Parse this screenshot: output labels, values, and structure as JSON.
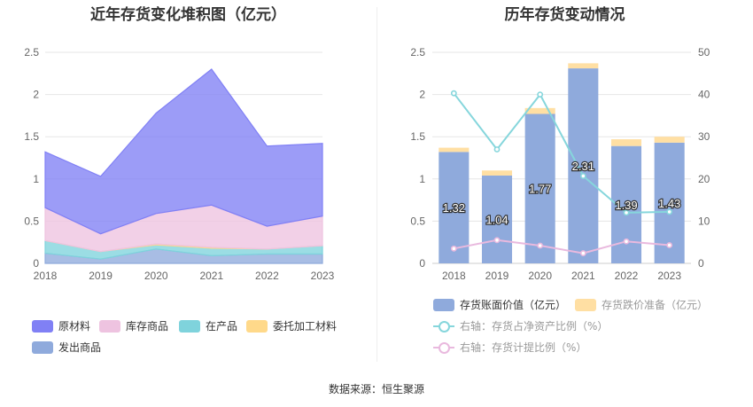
{
  "left_chart": {
    "title": "近年存货变化堆积图（亿元）"
  },
  "right_chart": {
    "title": "历年存货变动情况"
  },
  "source": "数据来源：恒生聚源",
  "chart_data": [
    {
      "type": "area",
      "stacked": true,
      "title": "近年存货变化堆积图（亿元）",
      "x": [
        "2018",
        "2019",
        "2020",
        "2021",
        "2022",
        "2023"
      ],
      "ylim": [
        0,
        2.5
      ],
      "yticks": [
        "0",
        "0.5",
        "1",
        "1.5",
        "2",
        "2.5"
      ],
      "grid": true,
      "legend_position": "bottom",
      "series": [
        {
          "name": "发出商品",
          "color": "#8faadc",
          "values": [
            0.12,
            0.05,
            0.17,
            0.09,
            0.11,
            0.11
          ]
        },
        {
          "name": "在产品",
          "color": "#7fd3dc",
          "values": [
            0.15,
            0.09,
            0.05,
            0.09,
            0.06,
            0.1
          ]
        },
        {
          "name": "委托加工材料",
          "color": "#ffd98a",
          "values": [
            0.0,
            0.0,
            0.01,
            0.01,
            0.0,
            0.0
          ]
        },
        {
          "name": "库存商品",
          "color": "#eec3e0",
          "values": [
            0.39,
            0.21,
            0.36,
            0.5,
            0.27,
            0.35
          ]
        },
        {
          "name": "原材料",
          "color": "#8080f5",
          "values": [
            0.66,
            0.68,
            1.19,
            1.61,
            0.95,
            0.86
          ]
        }
      ],
      "legend_order": [
        "原材料",
        "库存商品",
        "在产品",
        "委托加工材料",
        "发出商品"
      ]
    },
    {
      "type": "bar",
      "title": "历年存货变动情况",
      "categories": [
        "2018",
        "2019",
        "2020",
        "2021",
        "2022",
        "2023"
      ],
      "ylim": [
        0,
        2.5
      ],
      "yticks": [
        "0",
        "0.5",
        "1",
        "1.5",
        "2",
        "2.5"
      ],
      "y2lim": [
        0,
        50
      ],
      "y2ticks": [
        "0",
        "10",
        "20",
        "30",
        "40",
        "50"
      ],
      "grid": true,
      "legend_position": "bottom",
      "series": [
        {
          "name": "存货账面价值（亿元）",
          "kind": "bar",
          "color": "#8faadc",
          "values": [
            1.32,
            1.04,
            1.77,
            2.31,
            1.39,
            1.43
          ],
          "labels": [
            "1.32",
            "1.04",
            "1.77",
            "2.31",
            "1.39",
            "1.43"
          ]
        },
        {
          "name": "存货跌价准备（亿元）",
          "kind": "bar",
          "stacked_on": "存货账面价值（亿元）",
          "color": "#ffdfa3",
          "values": [
            0.05,
            0.06,
            0.07,
            0.06,
            0.08,
            0.07
          ]
        },
        {
          "name": "右轴：存货占净资产比例（%）",
          "kind": "line",
          "axis": "right",
          "color": "#86d6dc",
          "values": [
            40.3,
            27.0,
            40.0,
            20.7,
            12.0,
            12.2
          ]
        },
        {
          "name": "右轴：存货计提比例（%）",
          "kind": "line",
          "axis": "right",
          "color": "#e9b9de",
          "values": [
            3.5,
            5.5,
            4.2,
            2.4,
            5.2,
            4.3
          ]
        }
      ]
    }
  ]
}
